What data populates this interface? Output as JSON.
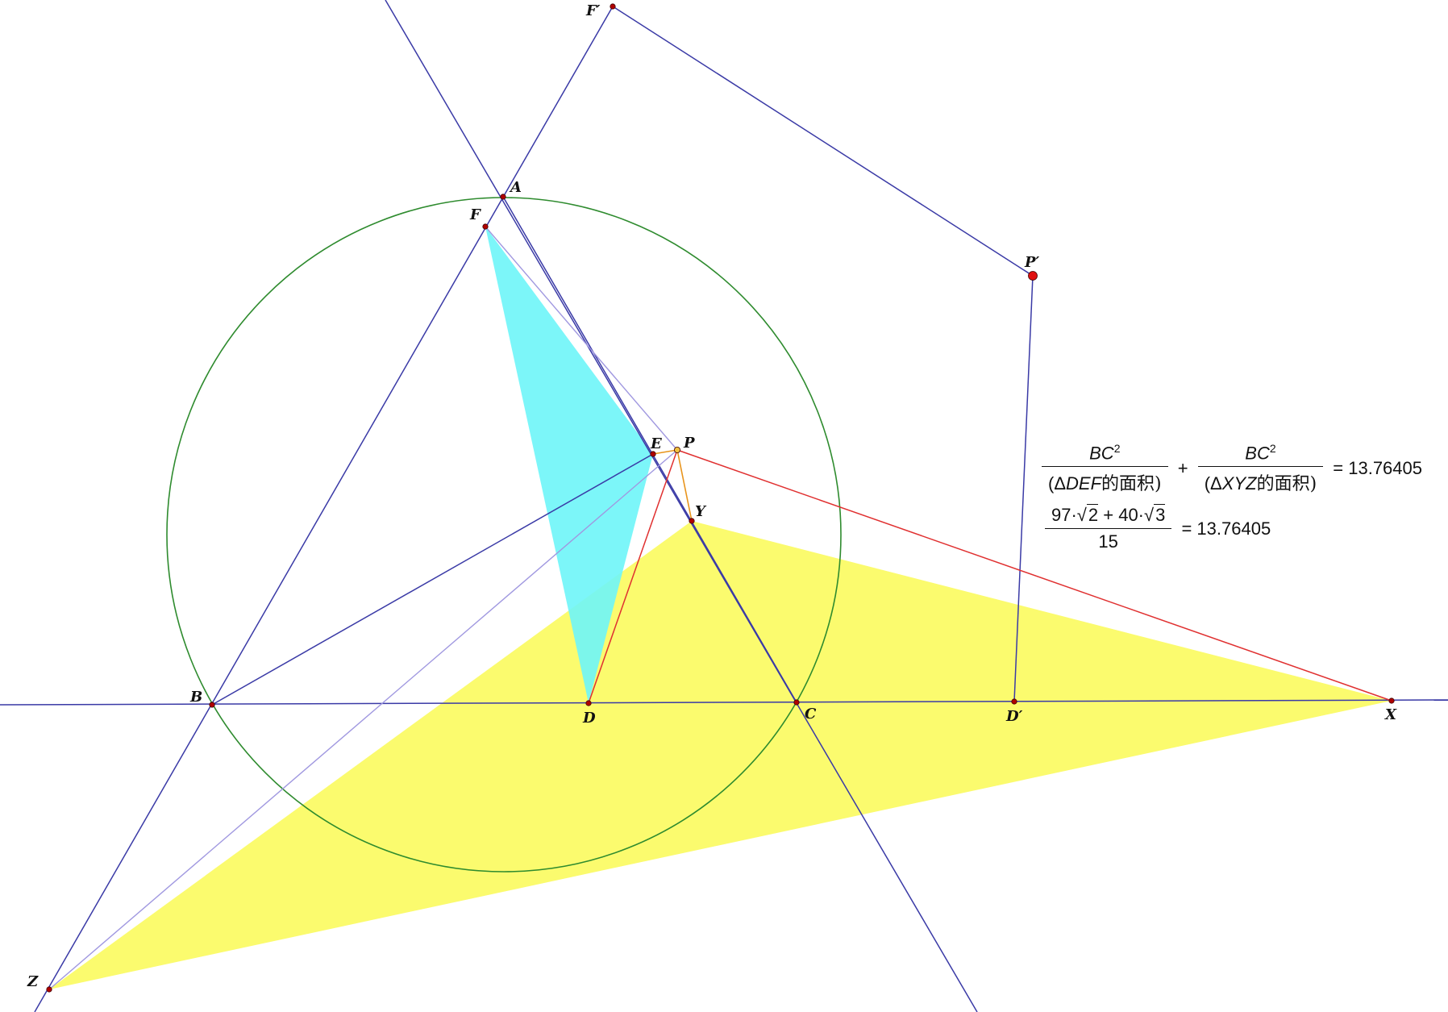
{
  "points": {
    "A": "A",
    "B": "B",
    "C": "C",
    "D": "D",
    "E": "E",
    "F": "F",
    "P": "P",
    "X": "X",
    "Y": "Y",
    "Z": "Z",
    "F_prime": "F′",
    "P_prime": "P′",
    "D_prime": "D′"
  },
  "colors": {
    "line": "#3a3aa6",
    "circle": "#2e8b2e",
    "cevian": "#e03030",
    "orange": "#e8941c",
    "triangle_DEF": "#6ef5f8",
    "triangle_XYZ": "#fbfb6e",
    "point": "#b00000"
  },
  "measurements": {
    "row1": {
      "num1": "BC",
      "exp1": "2",
      "den1_open": "(Δ",
      "den1_name": "DEF",
      "den1_suffix": "的面积)",
      "plus": "+",
      "num2": "BC",
      "exp2": "2",
      "den2_open": "(Δ",
      "den2_name": "XYZ",
      "den2_suffix": "的面积)",
      "result": "= 13.76405"
    },
    "row2": {
      "coef1": "97·",
      "root1": "2",
      "plus": " + ",
      "coef2": "40·",
      "root2": "3",
      "den": "15",
      "result": "= 13.76405"
    }
  }
}
